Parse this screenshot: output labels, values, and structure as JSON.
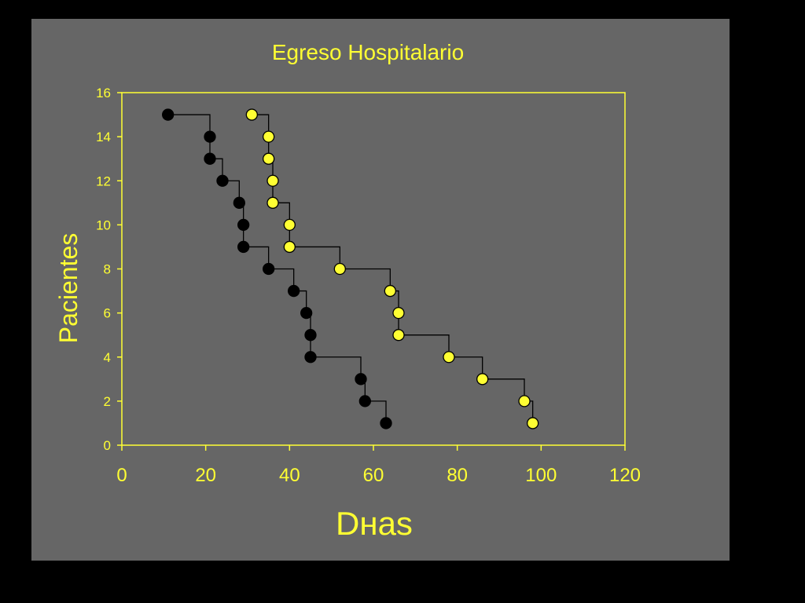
{
  "colors": {
    "background": "#000000",
    "slide": "#666666",
    "axis": "#ffff33",
    "series_black": "#000000",
    "series_yellow": "#ffff33"
  },
  "chart_data": {
    "type": "scatter",
    "title": "Egreso Hospitalario",
    "xlabel": "Dнas",
    "ylabel": "Pacientes",
    "xlim": [
      0,
      120
    ],
    "ylim": [
      0,
      16
    ],
    "xticks": [
      0,
      20,
      40,
      60,
      80,
      100,
      120
    ],
    "yticks": [
      0,
      2,
      4,
      6,
      8,
      10,
      12,
      14,
      16
    ],
    "grid": false,
    "step": true,
    "series": [
      {
        "color": "#000000",
        "points": [
          [
            11,
            15
          ],
          [
            21,
            14
          ],
          [
            21,
            13
          ],
          [
            24,
            12
          ],
          [
            28,
            11
          ],
          [
            29,
            10
          ],
          [
            29,
            9
          ],
          [
            35,
            8
          ],
          [
            41,
            7
          ],
          [
            44,
            6
          ],
          [
            45,
            5
          ],
          [
            45,
            4
          ],
          [
            57,
            3
          ],
          [
            58,
            2
          ],
          [
            63,
            1
          ]
        ]
      },
      {
        "color": "#ffff33",
        "points": [
          [
            31,
            15
          ],
          [
            35,
            14
          ],
          [
            35,
            13
          ],
          [
            36,
            12
          ],
          [
            36,
            11
          ],
          [
            40,
            10
          ],
          [
            40,
            9
          ],
          [
            52,
            8
          ],
          [
            64,
            7
          ],
          [
            66,
            6
          ],
          [
            66,
            5
          ],
          [
            78,
            4
          ],
          [
            86,
            3
          ],
          [
            96,
            2
          ],
          [
            98,
            1
          ]
        ]
      }
    ]
  }
}
